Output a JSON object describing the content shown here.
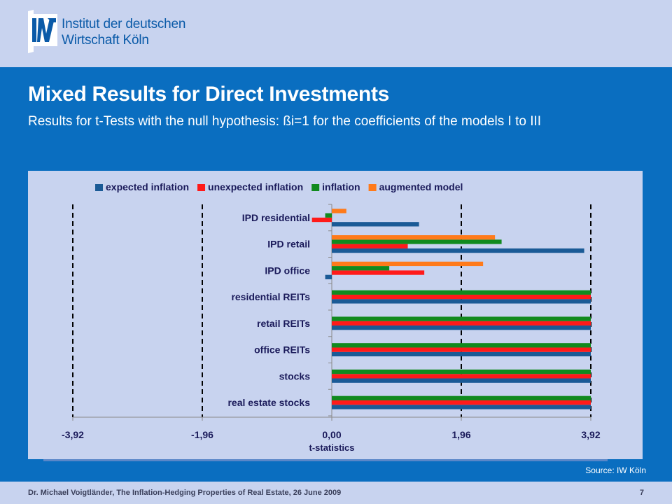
{
  "header": {
    "logo_line1": "Institut der deutschen",
    "logo_line2": "Wirtschaft Köln"
  },
  "slide": {
    "title": "Mixed Results for Direct Investments",
    "subtitle": "Results for t-Tests with the null hypothesis: ßi=1 for the coefficients of the models I to III",
    "source": "Source: IW Köln"
  },
  "footer": {
    "text": "Dr. Michael Voigtländer, The Inflation-Hedging Properties of Real Estate, 26 June 2009",
    "page_number": "7"
  },
  "colors": {
    "background": "#c8d3ef",
    "panel": "#0a6ec0",
    "expected_inflation": "#1a5a96",
    "unexpected_inflation": "#ff1a1a",
    "inflation": "#118a1e",
    "augmented_model": "#ff7a1a"
  },
  "chart_data": {
    "type": "bar",
    "orientation": "horizontal",
    "categories": [
      "IPD residential",
      "IPD retail",
      "IPD office",
      "residential REITs",
      "retail REITs",
      "office REITs",
      "stocks",
      "real estate stocks"
    ],
    "series": [
      {
        "name": "expected inflation",
        "color": "#1a5a96",
        "values": [
          1.32,
          3.82,
          -0.1,
          3.92,
          3.92,
          3.92,
          3.92,
          3.92
        ]
      },
      {
        "name": "unexpected inflation",
        "color": "#ff1a1a",
        "values": [
          -0.3,
          1.15,
          1.4,
          3.92,
          3.92,
          3.92,
          3.92,
          3.92
        ]
      },
      {
        "name": "inflation",
        "color": "#118a1e",
        "values": [
          -0.1,
          2.57,
          0.87,
          3.92,
          3.92,
          3.92,
          3.92,
          3.92
        ]
      },
      {
        "name": "augmented model",
        "color": "#ff7a1a",
        "values": [
          0.22,
          2.47,
          2.29,
          null,
          null,
          null,
          null,
          null
        ]
      }
    ],
    "xlabel": "t-statistics",
    "ylabel": "",
    "xlim": [
      -3.92,
      3.92
    ],
    "xticks": [
      -3.92,
      -1.96,
      0.0,
      1.96,
      3.92
    ],
    "xtick_labels": [
      "-3,92",
      "-1,96",
      "0,00",
      "1,96",
      "3,92"
    ],
    "reference_lines": [
      -3.92,
      -1.96,
      1.96,
      3.92
    ],
    "grid": false,
    "legend": "top"
  }
}
